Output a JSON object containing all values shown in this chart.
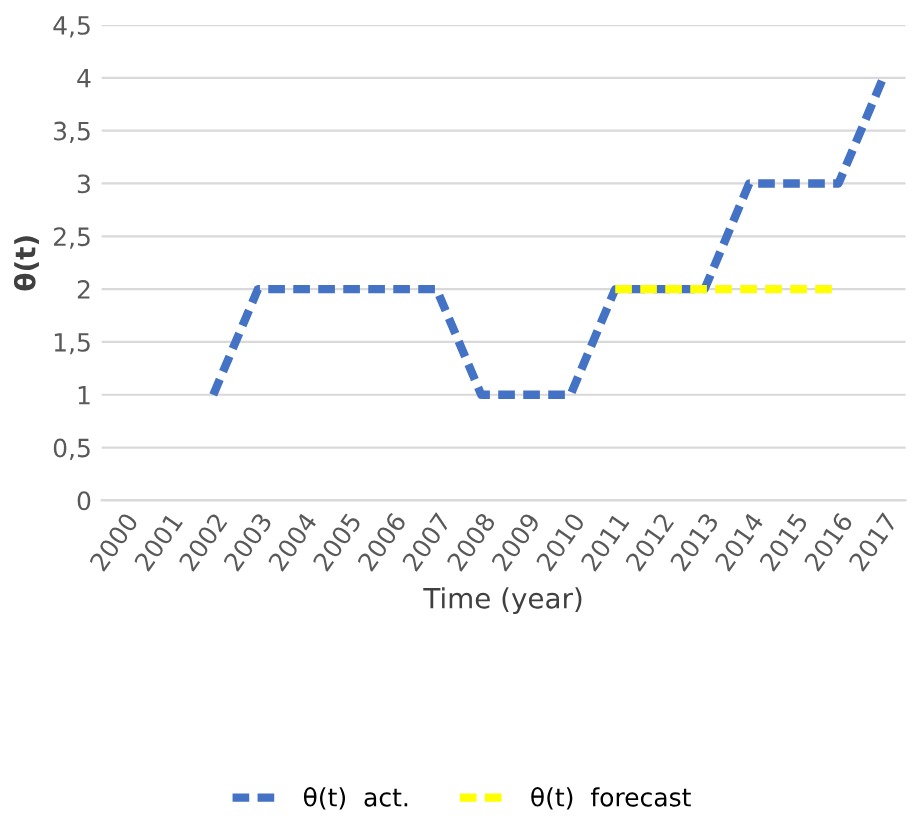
{
  "chart_data": {
    "type": "line",
    "xlabel": "Time (year)",
    "ylabel": "θ(t)",
    "categories": [
      "2000",
      "2001",
      "2002",
      "2003",
      "2004",
      "2005",
      "2006",
      "2007",
      "2008",
      "2009",
      "2010",
      "2011",
      "2012",
      "2013",
      "2014",
      "2015",
      "2016",
      "2017"
    ],
    "series": [
      {
        "name": "θ(t)  act.",
        "color": "#4472c4",
        "values": [
          null,
          null,
          1,
          2,
          2,
          2,
          2,
          2,
          1,
          1,
          1,
          2,
          2,
          2,
          3,
          3,
          3,
          4
        ]
      },
      {
        "name": "θ(t)  forecast",
        "color": "#ffff00",
        "values": [
          null,
          null,
          null,
          null,
          null,
          null,
          null,
          null,
          null,
          null,
          null,
          2,
          2,
          2,
          2,
          2,
          2,
          null
        ]
      }
    ],
    "ylim": [
      0,
      4.5
    ],
    "yticks": [
      {
        "value": 0,
        "label": "0"
      },
      {
        "value": 0.5,
        "label": "0,5"
      },
      {
        "value": 1,
        "label": "1"
      },
      {
        "value": 1.5,
        "label": "1,5"
      },
      {
        "value": 2,
        "label": "2"
      },
      {
        "value": 2.5,
        "label": "2,5"
      },
      {
        "value": 3,
        "label": "3"
      },
      {
        "value": 3.5,
        "label": "3,5"
      },
      {
        "value": 4,
        "label": "4"
      },
      {
        "value": 4.5,
        "label": "4,5"
      }
    ],
    "grid": "y",
    "legend": "bottom",
    "line_style": "dashed",
    "marker": "none"
  }
}
